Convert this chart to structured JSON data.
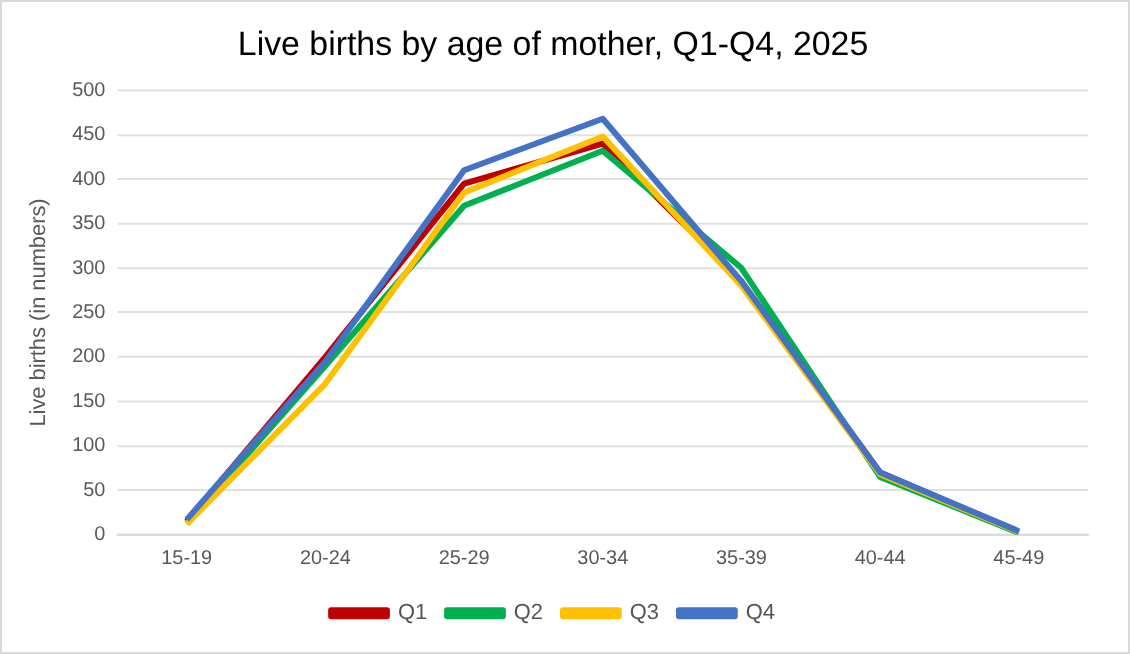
{
  "chart_data": {
    "type": "line",
    "title": "Live births by age of mother, Q1-Q4, 2025",
    "ylabel": "Live births (in numbers)",
    "categories": [
      "15-19",
      "20-24",
      "25-29",
      "30-34",
      "35-39",
      "40-44",
      "45-49"
    ],
    "series": [
      {
        "name": "Q1",
        "color": "#c00000",
        "values": [
          15,
          200,
          395,
          440,
          285,
          70,
          3
        ]
      },
      {
        "name": "Q2",
        "color": "#00b050",
        "values": [
          13,
          190,
          370,
          432,
          300,
          65,
          2
        ]
      },
      {
        "name": "Q3",
        "color": "#ffc000",
        "values": [
          12,
          170,
          385,
          448,
          280,
          68,
          3
        ]
      },
      {
        "name": "Q4",
        "color": "#4472c4",
        "values": [
          17,
          195,
          410,
          468,
          285,
          70,
          4
        ]
      }
    ],
    "ylim": [
      0,
      500
    ],
    "yticks": [
      0,
      50,
      100,
      150,
      200,
      250,
      300,
      350,
      400,
      450,
      500
    ],
    "grid": "y",
    "legend": "bottom",
    "marker": "none",
    "line_style": "solid"
  }
}
